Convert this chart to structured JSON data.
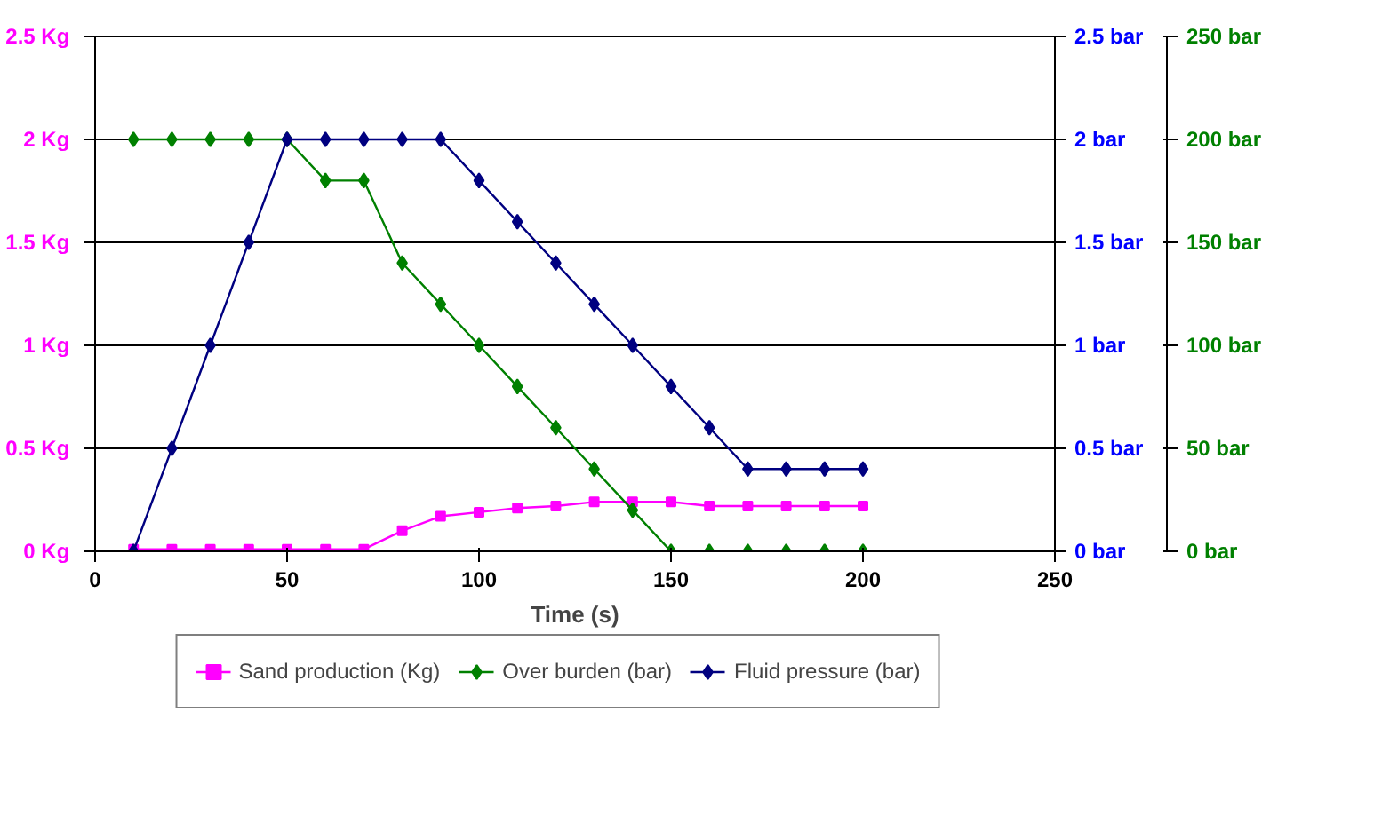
{
  "chart_data": {
    "type": "line",
    "xlabel": "Time (s)",
    "xlim": [
      0,
      250
    ],
    "xticks": [
      0,
      50,
      100,
      150,
      200,
      250
    ],
    "ylim": [
      0,
      2.5
    ],
    "yticks": [
      {
        "value": 0,
        "label": "0  Kg"
      },
      {
        "value": 0.5,
        "label": "0.5  Kg"
      },
      {
        "value": 1,
        "label": "1  Kg"
      },
      {
        "value": 1.5,
        "label": "1.5  Kg"
      },
      {
        "value": 2,
        "label": "2  Kg"
      },
      {
        "value": 2.5,
        "label": "2.5  Kg"
      }
    ],
    "y2lim": [
      0,
      2.5
    ],
    "y2ticks": [
      {
        "value": 0,
        "label": "0       bar"
      },
      {
        "value": 0.5,
        "label": "0.5  bar"
      },
      {
        "value": 1,
        "label": "1       bar"
      },
      {
        "value": 1.5,
        "label": "1.5  bar"
      },
      {
        "value": 2,
        "label": "2       bar"
      },
      {
        "value": 2.5,
        "label": "2.5  bar"
      }
    ],
    "y3lim": [
      0,
      250
    ],
    "y3ticks": [
      {
        "value": 0,
        "label": "0       bar"
      },
      {
        "value": 50,
        "label": "50     bar"
      },
      {
        "value": 100,
        "label": "100   bar"
      },
      {
        "value": 150,
        "label": "150   bar"
      },
      {
        "value": 200,
        "label": "200   bar"
      },
      {
        "value": 250,
        "label": "250   bar"
      }
    ],
    "grid": "y",
    "legend": "bottom",
    "line_style": "solid",
    "x": [
      10,
      20,
      30,
      40,
      50,
      60,
      70,
      80,
      90,
      100,
      110,
      120,
      130,
      140,
      150,
      160,
      170,
      180,
      190,
      200
    ],
    "series": [
      {
        "name": "Sand production (Kg)",
        "color": "#ff00ff",
        "marker": "square",
        "values": [
          0.01,
          0.01,
          0.01,
          0.01,
          0.01,
          0.01,
          0.01,
          0.1,
          0.17,
          0.19,
          0.21,
          0.22,
          0.24,
          0.24,
          0.24,
          0.22,
          0.22,
          0.22,
          0.22,
          0.22
        ]
      },
      {
        "name": "Over burden (bar)",
        "color": "#008000",
        "marker": "diamond",
        "axis": "y3",
        "values": [
          200,
          200,
          200,
          200,
          200,
          180,
          180,
          140,
          120,
          100,
          80,
          60,
          40,
          20,
          0,
          0,
          0,
          0,
          0,
          0
        ]
      },
      {
        "name": "Fluid pressure (bar)",
        "color": "#000080",
        "marker": "diamond",
        "axis": "y2",
        "values": [
          0,
          0.5,
          1,
          1.5,
          2,
          2,
          2,
          2,
          2,
          1.8,
          1.6,
          1.4,
          1.2,
          1,
          0.8,
          0.6,
          0.4,
          0.4,
          0.4,
          0.4
        ]
      }
    ]
  }
}
